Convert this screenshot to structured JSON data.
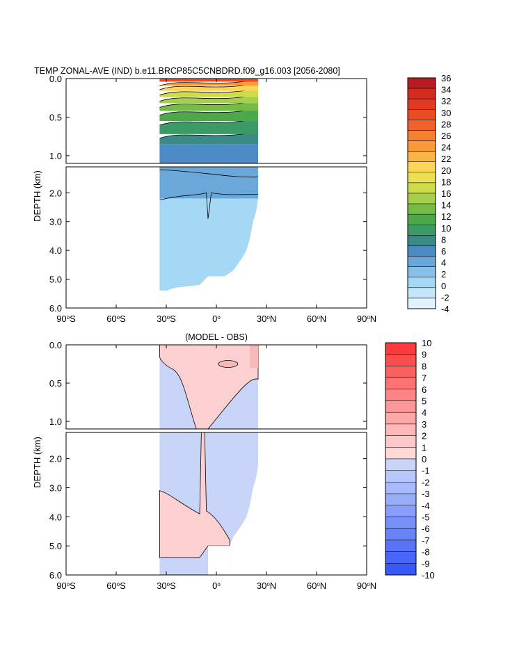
{
  "chart_data": [
    {
      "type": "heatmap",
      "panel": "top",
      "title": "TEMP ZONAL-AVE (IND) b.e11.BRCP85C5CNBDRD.f09_g16.003 [2056-2080]",
      "ylabel": "DEPTH (km)",
      "upper_yticks": [
        "0.0",
        "0.5",
        "1.0"
      ],
      "lower_yticks": [
        "2.0",
        "3.0",
        "4.0",
        "5.0",
        "6.0"
      ],
      "upper_yrange_km": [
        0,
        1.1
      ],
      "lower_yrange_km": [
        1.1,
        6.0
      ],
      "xticks": [
        {
          "deg": "90",
          "hemi": "S"
        },
        {
          "deg": "60",
          "hemi": "S"
        },
        {
          "deg": "30",
          "hemi": "S"
        },
        {
          "deg": "0",
          "hemi": ""
        },
        {
          "deg": "30",
          "hemi": "N"
        },
        {
          "deg": "60",
          "hemi": "N"
        },
        {
          "deg": "90",
          "hemi": "N"
        }
      ],
      "xrange_deg": [
        -90,
        90
      ],
      "data_lat_range": [
        -34,
        25
      ],
      "colorbar": {
        "labels": [
          "36",
          "34",
          "32",
          "30",
          "28",
          "26",
          "24",
          "22",
          "20",
          "18",
          "16",
          "14",
          "12",
          "10",
          "8",
          "6",
          "4",
          "2",
          "0",
          "-2",
          "-4"
        ],
        "colors": [
          "#b81c22",
          "#d42a20",
          "#e23a22",
          "#ea4d23",
          "#f06227",
          "#f4812e",
          "#f89a3a",
          "#fbb445",
          "#fcd457",
          "#ece050",
          "#cedc4c",
          "#a4cf4a",
          "#74bb48",
          "#4ca84a",
          "#3c9a66",
          "#3a8a86",
          "#4c8ac6",
          "#6aa8da",
          "#86c0e8",
          "#a4d8f4",
          "#c4e6f8",
          "#e0f2fc"
        ]
      },
      "upper_levels": [
        {
          "color": "#4c8ac6",
          "depth": [
            0.85,
            1.1
          ]
        },
        {
          "color": "#3a8a86",
          "depth": [
            0.72,
            0.85
          ]
        },
        {
          "color": "#3c9a66",
          "depth": [
            0.55,
            0.72
          ]
        },
        {
          "color": "#4ca84a",
          "depth": [
            0.42,
            0.55
          ]
        },
        {
          "color": "#74bb48",
          "depth": [
            0.32,
            0.42
          ]
        },
        {
          "color": "#a4cf4a",
          "depth": [
            0.24,
            0.32
          ]
        },
        {
          "color": "#cedc4c",
          "depth": [
            0.16,
            0.24
          ]
        },
        {
          "color": "#fcd457",
          "depth": [
            0.09,
            0.16
          ]
        },
        {
          "color": "#f89a3a",
          "depth": [
            0.04,
            0.09
          ]
        },
        {
          "color": "#ea4d23",
          "depth": [
            0.0,
            0.04
          ]
        }
      ],
      "lower_levels": [
        {
          "color": "#6aa8da",
          "depth": [
            1.1,
            2.2
          ]
        },
        {
          "color": "#a4d8f4",
          "depth": [
            2.2,
            5.4
          ]
        }
      ]
    },
    {
      "type": "heatmap",
      "panel": "bottom",
      "title": "(MODEL - OBS)",
      "ylabel": "DEPTH (km)",
      "upper_yticks": [
        "0.0",
        "0.5",
        "1.0"
      ],
      "lower_yticks": [
        "2.0",
        "3.0",
        "4.0",
        "5.0",
        "6.0"
      ],
      "upper_yrange_km": [
        0,
        1.1
      ],
      "lower_yrange_km": [
        1.1,
        6.0
      ],
      "xticks": [
        {
          "deg": "90",
          "hemi": "S"
        },
        {
          "deg": "60",
          "hemi": "S"
        },
        {
          "deg": "30",
          "hemi": "S"
        },
        {
          "deg": "0",
          "hemi": ""
        },
        {
          "deg": "30",
          "hemi": "N"
        },
        {
          "deg": "60",
          "hemi": "N"
        },
        {
          "deg": "90",
          "hemi": "N"
        }
      ],
      "xrange_deg": [
        -90,
        90
      ],
      "data_lat_range": [
        -34,
        25
      ],
      "colorbar": {
        "labels": [
          "10",
          "9",
          "8",
          "7",
          "6",
          "5",
          "4",
          "3",
          "2",
          "1",
          "0",
          "-1",
          "-2",
          "-3",
          "-4",
          "-5",
          "-6",
          "-7",
          "-8",
          "-9",
          "-10"
        ],
        "colors": [
          "#fa3c3c",
          "#fb4e4e",
          "#fb6060",
          "#fc7272",
          "#fc8484",
          "#fd9696",
          "#fda8a8",
          "#feb8b8",
          "#fec8c8",
          "#ffd8d8",
          "#c8d4f8",
          "#b8c8fa",
          "#a8bafa",
          "#98acfa",
          "#889efa",
          "#7890fa",
          "#6882fa",
          "#5874fa",
          "#4866fa",
          "#3858fa"
        ]
      },
      "warm_color": "#fcd0d0",
      "warm2_color": "#f8b8b8",
      "cool_color": "#c8d4f8"
    }
  ]
}
